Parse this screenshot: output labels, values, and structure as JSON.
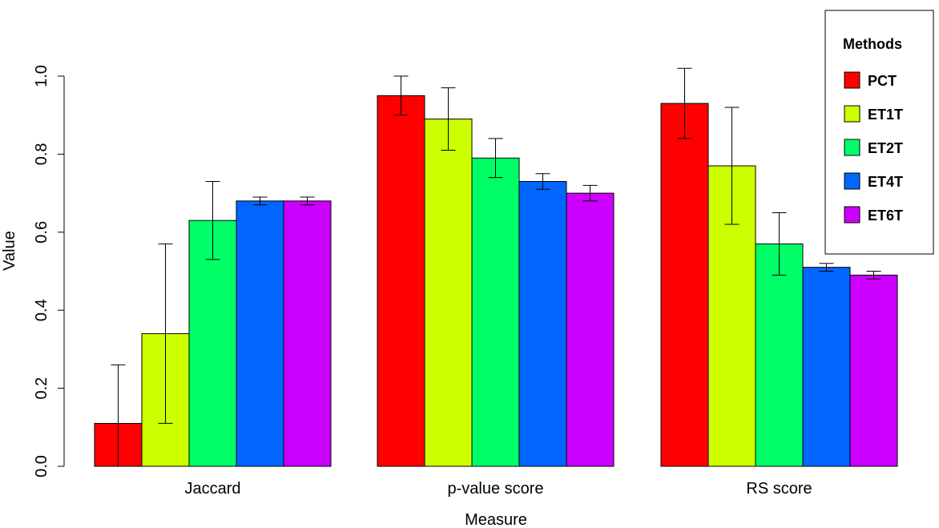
{
  "chart_data": {
    "type": "bar",
    "title": "",
    "xlabel": "Measure",
    "ylabel": "Value",
    "ylim": [
      0,
      1
    ],
    "yticks": [
      "0.0",
      "0.2",
      "0.4",
      "0.6",
      "0.8",
      "1.0"
    ],
    "categories": [
      "Jaccard",
      "p-value score",
      "RS score"
    ],
    "legend_title": "Methods",
    "legend_position": "top-right",
    "series": [
      {
        "name": "PCT",
        "color": "#ff0000",
        "values": [
          0.11,
          0.95,
          0.93
        ],
        "err_low": [
          0.0,
          0.9,
          0.84
        ],
        "err_high": [
          0.26,
          1.0,
          1.02
        ]
      },
      {
        "name": "ET1T",
        "color": "#ccff00",
        "values": [
          0.34,
          0.89,
          0.77
        ],
        "err_low": [
          0.11,
          0.81,
          0.62
        ],
        "err_high": [
          0.57,
          0.97,
          0.92
        ]
      },
      {
        "name": "ET2T",
        "color": "#00ff66",
        "values": [
          0.63,
          0.79,
          0.57
        ],
        "err_low": [
          0.53,
          0.74,
          0.49
        ],
        "err_high": [
          0.73,
          0.84,
          0.65
        ]
      },
      {
        "name": "ET4T",
        "color": "#0066ff",
        "values": [
          0.68,
          0.73,
          0.51
        ],
        "err_low": [
          0.67,
          0.71,
          0.5
        ],
        "err_high": [
          0.69,
          0.75,
          0.52
        ]
      },
      {
        "name": "ET6T",
        "color": "#cc00ff",
        "values": [
          0.68,
          0.7,
          0.49
        ],
        "err_low": [
          0.67,
          0.68,
          0.48
        ],
        "err_high": [
          0.69,
          0.72,
          0.5
        ]
      }
    ]
  }
}
